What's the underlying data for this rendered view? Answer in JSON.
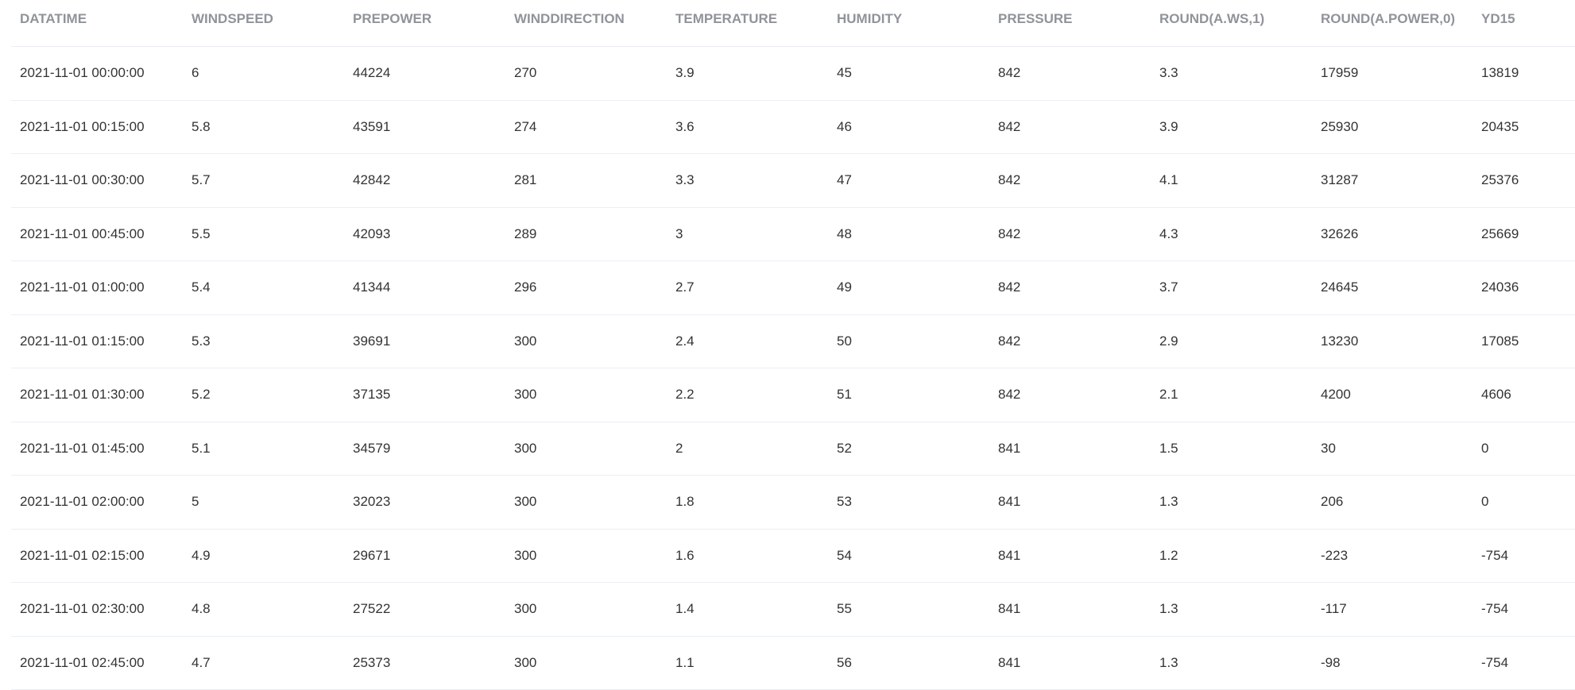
{
  "table": {
    "columns": [
      "DATATIME",
      "WINDSPEED",
      "PREPOWER",
      "WINDDIRECTION",
      "TEMPERATURE",
      "HUMIDITY",
      "PRESSURE",
      "ROUND(A.WS,1)",
      "ROUND(A.POWER,0)",
      "YD15"
    ],
    "rows": [
      [
        "2021-11-01 00:00:00",
        "6",
        "44224",
        "270",
        "3.9",
        "45",
        "842",
        "3.3",
        "17959",
        "13819"
      ],
      [
        "2021-11-01 00:15:00",
        "5.8",
        "43591",
        "274",
        "3.6",
        "46",
        "842",
        "3.9",
        "25930",
        "20435"
      ],
      [
        "2021-11-01 00:30:00",
        "5.7",
        "42842",
        "281",
        "3.3",
        "47",
        "842",
        "4.1",
        "31287",
        "25376"
      ],
      [
        "2021-11-01 00:45:00",
        "5.5",
        "42093",
        "289",
        "3",
        "48",
        "842",
        "4.3",
        "32626",
        "25669"
      ],
      [
        "2021-11-01 01:00:00",
        "5.4",
        "41344",
        "296",
        "2.7",
        "49",
        "842",
        "3.7",
        "24645",
        "24036"
      ],
      [
        "2021-11-01 01:15:00",
        "5.3",
        "39691",
        "300",
        "2.4",
        "50",
        "842",
        "2.9",
        "13230",
        "17085"
      ],
      [
        "2021-11-01 01:30:00",
        "5.2",
        "37135",
        "300",
        "2.2",
        "51",
        "842",
        "2.1",
        "4200",
        "4606"
      ],
      [
        "2021-11-01 01:45:00",
        "5.1",
        "34579",
        "300",
        "2",
        "52",
        "841",
        "1.5",
        "30",
        "0"
      ],
      [
        "2021-11-01 02:00:00",
        "5",
        "32023",
        "300",
        "1.8",
        "53",
        "841",
        "1.3",
        "206",
        "0"
      ],
      [
        "2021-11-01 02:15:00",
        "4.9",
        "29671",
        "300",
        "1.6",
        "54",
        "841",
        "1.2",
        "-223",
        "-754"
      ],
      [
        "2021-11-01 02:30:00",
        "4.8",
        "27522",
        "300",
        "1.4",
        "55",
        "841",
        "1.3",
        "-117",
        "-754"
      ],
      [
        "2021-11-01 02:45:00",
        "4.7",
        "25373",
        "300",
        "1.1",
        "56",
        "841",
        "1.3",
        "-98",
        "-754"
      ]
    ]
  }
}
